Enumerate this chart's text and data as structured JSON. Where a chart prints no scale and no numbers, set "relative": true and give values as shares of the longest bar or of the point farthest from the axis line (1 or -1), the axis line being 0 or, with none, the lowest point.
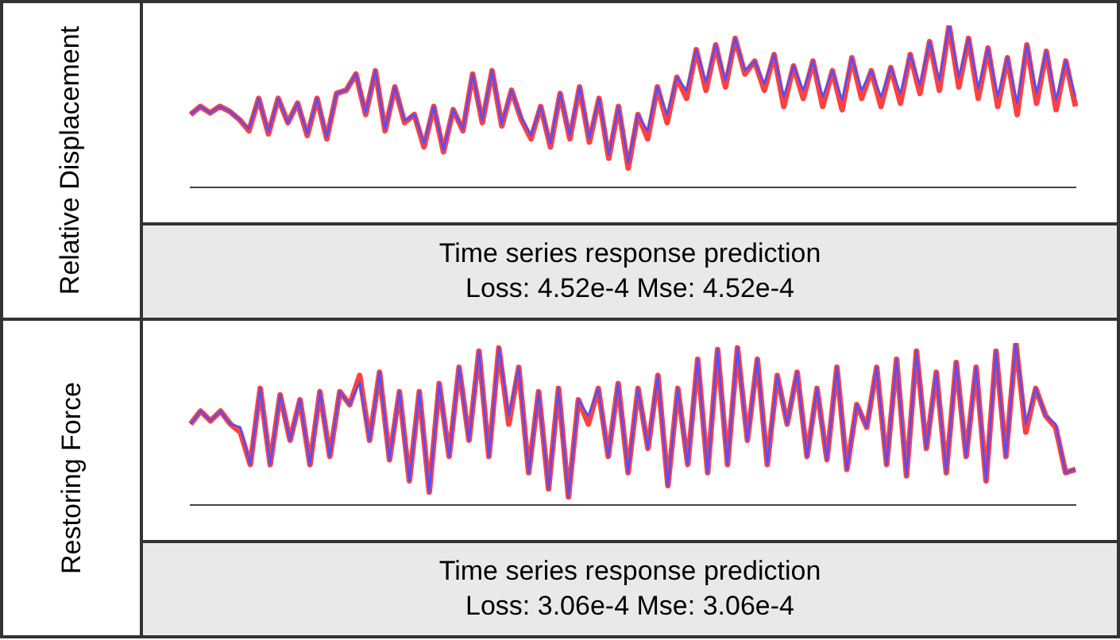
{
  "chart_data": [
    {
      "type": "line",
      "relative": true,
      "ylabel": "Relative Displacement",
      "annotations": [
        "Time series response prediction",
        "Loss: 4.52e-4 Mse: 4.52e-4"
      ],
      "categories": [
        null,
        null,
        null,
        null,
        null,
        null,
        null,
        null,
        null,
        null,
        null,
        null,
        null,
        null,
        null,
        null,
        null,
        null,
        null,
        null,
        null,
        null,
        null,
        null,
        null,
        null,
        null,
        null,
        null,
        null,
        null,
        null,
        null,
        null,
        null,
        null,
        null,
        null,
        null,
        null,
        null,
        null,
        null,
        null,
        null,
        null,
        null,
        null,
        null,
        null,
        null,
        null,
        null,
        null,
        null,
        null,
        null,
        null,
        null,
        null,
        null,
        null,
        null,
        null,
        null,
        null,
        null,
        null,
        null,
        null,
        null,
        null,
        null,
        null,
        null,
        null,
        null,
        null,
        null,
        null,
        null,
        null,
        null,
        null,
        null,
        null,
        null,
        null,
        null,
        null,
        null,
        null
      ],
      "series": [
        {
          "color": "#ff4040",
          "values": [
            0.45,
            0.5,
            0.46,
            0.5,
            0.47,
            0.42,
            0.35,
            0.55,
            0.33,
            0.55,
            0.4,
            0.52,
            0.32,
            0.55,
            0.3,
            0.58,
            0.6,
            0.7,
            0.45,
            0.72,
            0.35,
            0.62,
            0.4,
            0.45,
            0.25,
            0.5,
            0.22,
            0.48,
            0.35,
            0.7,
            0.4,
            0.72,
            0.38,
            0.6,
            0.42,
            0.3,
            0.5,
            0.25,
            0.58,
            0.3,
            0.62,
            0.28,
            0.55,
            0.18,
            0.5,
            0.12,
            0.45,
            0.3,
            0.62,
            0.4,
            0.68,
            0.55,
            0.85,
            0.6,
            0.88,
            0.62,
            0.92,
            0.7,
            0.78,
            0.6,
            0.82,
            0.5,
            0.75,
            0.55,
            0.78,
            0.5,
            0.72,
            0.48,
            0.8,
            0.55,
            0.72,
            0.5,
            0.74,
            0.52,
            0.82,
            0.58,
            0.9,
            0.6,
            1.0,
            0.62,
            0.92,
            0.55,
            0.86,
            0.5,
            0.8,
            0.45,
            0.88,
            0.52,
            0.84,
            0.48,
            0.78,
            0.5
          ]
        },
        {
          "color": "#5050ff",
          "values": [
            0.45,
            0.5,
            0.46,
            0.5,
            0.47,
            0.42,
            0.36,
            0.55,
            0.34,
            0.55,
            0.4,
            0.52,
            0.33,
            0.55,
            0.31,
            0.58,
            0.6,
            0.7,
            0.46,
            0.72,
            0.36,
            0.62,
            0.41,
            0.45,
            0.27,
            0.5,
            0.23,
            0.48,
            0.36,
            0.7,
            0.41,
            0.72,
            0.39,
            0.6,
            0.43,
            0.32,
            0.5,
            0.27,
            0.58,
            0.32,
            0.62,
            0.3,
            0.55,
            0.2,
            0.5,
            0.15,
            0.45,
            0.35,
            0.62,
            0.45,
            0.68,
            0.6,
            0.85,
            0.65,
            0.88,
            0.66,
            0.92,
            0.72,
            0.78,
            0.64,
            0.82,
            0.56,
            0.75,
            0.6,
            0.78,
            0.56,
            0.72,
            0.54,
            0.8,
            0.6,
            0.72,
            0.56,
            0.74,
            0.58,
            0.82,
            0.63,
            0.9,
            0.66,
            1.0,
            0.68,
            0.92,
            0.61,
            0.86,
            0.56,
            0.8,
            0.52,
            0.88,
            0.58,
            0.84,
            0.54,
            0.78,
            0.56
          ]
        }
      ]
    },
    {
      "type": "line",
      "relative": true,
      "ylabel": "Restoring Force",
      "annotations": [
        "Time series response prediction",
        "Loss: 3.06e-4 Mse: 3.06e-4"
      ],
      "categories": [
        null,
        null,
        null,
        null,
        null,
        null,
        null,
        null,
        null,
        null,
        null,
        null,
        null,
        null,
        null,
        null,
        null,
        null,
        null,
        null,
        null,
        null,
        null,
        null,
        null,
        null,
        null,
        null,
        null,
        null,
        null,
        null,
        null,
        null,
        null,
        null,
        null,
        null,
        null,
        null,
        null,
        null,
        null,
        null,
        null,
        null,
        null,
        null,
        null,
        null,
        null,
        null,
        null,
        null,
        null,
        null,
        null,
        null,
        null,
        null,
        null,
        null,
        null,
        null,
        null,
        null,
        null,
        null,
        null,
        null,
        null,
        null,
        null,
        null,
        null,
        null,
        null,
        null,
        null,
        null,
        null,
        null,
        null,
        null,
        null,
        null,
        null,
        null,
        null,
        null
      ],
      "series": [
        {
          "color": "#ff4040",
          "values": [
            0.5,
            0.58,
            0.52,
            0.58,
            0.5,
            0.45,
            0.25,
            0.72,
            0.25,
            0.68,
            0.4,
            0.65,
            0.25,
            0.7,
            0.3,
            0.7,
            0.62,
            0.8,
            0.4,
            0.82,
            0.28,
            0.7,
            0.15,
            0.7,
            0.08,
            0.75,
            0.3,
            0.85,
            0.4,
            0.95,
            0.3,
            0.97,
            0.5,
            0.85,
            0.2,
            0.7,
            0.1,
            0.72,
            0.05,
            0.65,
            0.5,
            0.72,
            0.3,
            0.75,
            0.2,
            0.72,
            0.35,
            0.8,
            0.12,
            0.72,
            0.25,
            0.9,
            0.2,
            0.96,
            0.25,
            0.97,
            0.4,
            0.9,
            0.25,
            0.8,
            0.5,
            0.82,
            0.3,
            0.72,
            0.28,
            0.85,
            0.22,
            0.62,
            0.48,
            0.85,
            0.25,
            0.9,
            0.18,
            0.95,
            0.35,
            0.82,
            0.2,
            0.88,
            0.3,
            0.85,
            0.15,
            0.95,
            0.3,
            1.0,
            0.45,
            0.72,
            0.55,
            0.48,
            0.2,
            0.22
          ]
        },
        {
          "color": "#5050ff",
          "values": [
            0.5,
            0.58,
            0.52,
            0.58,
            0.5,
            0.48,
            0.25,
            0.72,
            0.25,
            0.68,
            0.4,
            0.65,
            0.25,
            0.7,
            0.3,
            0.7,
            0.62,
            0.76,
            0.4,
            0.82,
            0.28,
            0.7,
            0.15,
            0.7,
            0.08,
            0.75,
            0.3,
            0.85,
            0.4,
            0.95,
            0.3,
            0.97,
            0.55,
            0.85,
            0.2,
            0.7,
            0.1,
            0.72,
            0.05,
            0.65,
            0.55,
            0.72,
            0.3,
            0.75,
            0.2,
            0.72,
            0.35,
            0.8,
            0.12,
            0.72,
            0.25,
            0.9,
            0.2,
            0.96,
            0.25,
            0.97,
            0.4,
            0.9,
            0.25,
            0.8,
            0.5,
            0.82,
            0.3,
            0.72,
            0.28,
            0.85,
            0.22,
            0.62,
            0.48,
            0.85,
            0.25,
            0.9,
            0.18,
            0.95,
            0.35,
            0.82,
            0.2,
            0.88,
            0.3,
            0.85,
            0.15,
            0.95,
            0.3,
            1.0,
            0.5,
            0.72,
            0.55,
            0.5,
            0.2,
            0.22
          ]
        }
      ]
    }
  ]
}
